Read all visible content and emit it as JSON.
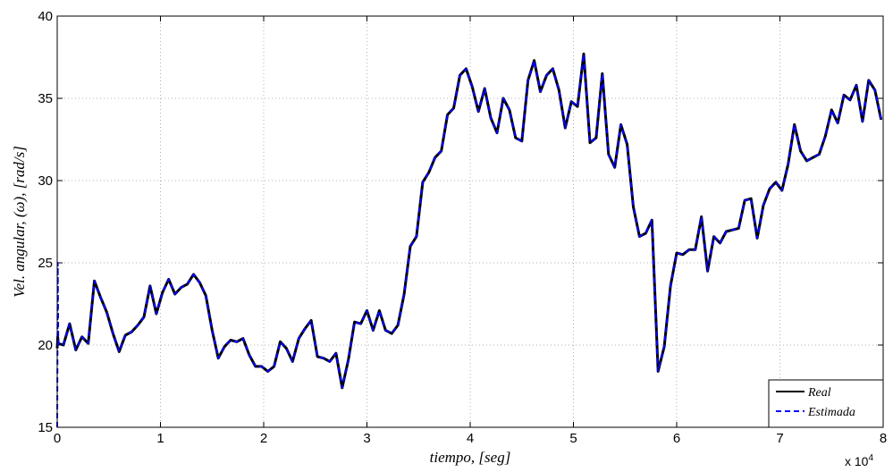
{
  "chart_data": {
    "type": "line",
    "xlabel": "tiempo, [seg]",
    "ylabel": "Vel. angular, (ω), [rad/s]",
    "x_multiplier_label": "x 10",
    "x_multiplier_exp": "4",
    "xlim": [
      0,
      8
    ],
    "ylim": [
      15,
      40
    ],
    "xticks": [
      "0",
      "1",
      "2",
      "3",
      "4",
      "5",
      "6",
      "7",
      "8"
    ],
    "yticks": [
      "15",
      "20",
      "25",
      "30",
      "35",
      "40"
    ],
    "grid": true,
    "legend_position": "bottom-right",
    "x": [
      0,
      0.005,
      0.01,
      0.06,
      0.12,
      0.18,
      0.24,
      0.3,
      0.36,
      0.42,
      0.48,
      0.54,
      0.6,
      0.66,
      0.72,
      0.78,
      0.84,
      0.9,
      0.96,
      1.02,
      1.08,
      1.14,
      1.2,
      1.26,
      1.32,
      1.38,
      1.44,
      1.5,
      1.56,
      1.62,
      1.68,
      1.74,
      1.8,
      1.86,
      1.92,
      1.98,
      2.04,
      2.1,
      2.16,
      2.22,
      2.28,
      2.34,
      2.4,
      2.46,
      2.52,
      2.58,
      2.64,
      2.7,
      2.76,
      2.82,
      2.88,
      2.94,
      3.0,
      3.06,
      3.12,
      3.18,
      3.24,
      3.3,
      3.36,
      3.42,
      3.48,
      3.54,
      3.6,
      3.66,
      3.72,
      3.78,
      3.84,
      3.9,
      3.96,
      4.02,
      4.08,
      4.14,
      4.2,
      4.26,
      4.32,
      4.38,
      4.44,
      4.5,
      4.56,
      4.62,
      4.68,
      4.74,
      4.8,
      4.86,
      4.92,
      4.98,
      5.04,
      5.1,
      5.16,
      5.22,
      5.28,
      5.34,
      5.4,
      5.46,
      5.52,
      5.58,
      5.64,
      5.7,
      5.76,
      5.82,
      5.88,
      5.94,
      6.0,
      6.06,
      6.12,
      6.18,
      6.24,
      6.3,
      6.36,
      6.42,
      6.48,
      6.54,
      6.6,
      6.66,
      6.72,
      6.78,
      6.84,
      6.9,
      6.96,
      7.02,
      7.08,
      7.14,
      7.2,
      7.26,
      7.32,
      7.38,
      7.44,
      7.5,
      7.56,
      7.62,
      7.68,
      7.74,
      7.8,
      7.86,
      7.92,
      7.98
    ],
    "series": [
      {
        "name": "Real",
        "color": "#000000",
        "style": "solid",
        "values": [
          19.8,
          20.5,
          20.1,
          20.0,
          21.3,
          19.7,
          20.5,
          20.1,
          23.9,
          22.9,
          22.0,
          20.7,
          19.6,
          20.6,
          20.8,
          21.2,
          21.7,
          23.6,
          21.9,
          23.2,
          24.0,
          23.1,
          23.5,
          23.7,
          24.3,
          23.8,
          23.0,
          20.9,
          19.2,
          19.9,
          20.3,
          20.2,
          20.4,
          19.4,
          18.7,
          18.7,
          18.4,
          18.7,
          20.2,
          19.8,
          19.0,
          20.4,
          21.0,
          21.5,
          19.3,
          19.2,
          19.0,
          19.5,
          17.4,
          19.1,
          21.4,
          21.3,
          22.1,
          20.9,
          22.1,
          20.9,
          20.7,
          21.2,
          23.1,
          26.0,
          26.6,
          29.9,
          30.5,
          31.4,
          31.8,
          34.0,
          34.4,
          36.4,
          36.8,
          35.7,
          34.2,
          35.6,
          33.8,
          32.9,
          35.0,
          34.3,
          32.6,
          32.4,
          36.1,
          37.3,
          35.4,
          36.4,
          36.8,
          35.5,
          33.2,
          34.8,
          34.5,
          37.7,
          32.3,
          32.6,
          36.5,
          31.6,
          30.8,
          33.4,
          32.2,
          28.4,
          26.6,
          26.8,
          27.6,
          18.4,
          19.9,
          23.6,
          25.6,
          25.5,
          25.8,
          25.8,
          27.8,
          24.5,
          26.6,
          26.2,
          26.9,
          27.0,
          27.1,
          28.8,
          28.9,
          26.5,
          28.5,
          29.5,
          29.9,
          29.4,
          31.0,
          33.4,
          31.8,
          31.2,
          31.4,
          31.6,
          32.7,
          34.3,
          33.5,
          35.2,
          34.9,
          35.8,
          33.6,
          36.1,
          35.5,
          33.7
        ]
      },
      {
        "name": "Estimada",
        "color": "#0000ff",
        "style": "dashed",
        "values": [
          15.0,
          25.0,
          20.1,
          20.0,
          21.3,
          19.7,
          20.5,
          20.1,
          23.9,
          22.9,
          22.0,
          20.7,
          19.6,
          20.6,
          20.8,
          21.2,
          21.7,
          23.6,
          21.9,
          23.2,
          24.0,
          23.1,
          23.5,
          23.7,
          24.3,
          23.8,
          23.0,
          20.9,
          19.2,
          19.9,
          20.3,
          20.2,
          20.4,
          19.4,
          18.7,
          18.7,
          18.4,
          18.7,
          20.2,
          19.8,
          19.0,
          20.4,
          21.0,
          21.5,
          19.3,
          19.2,
          19.0,
          19.5,
          17.4,
          19.1,
          21.4,
          21.3,
          22.1,
          20.9,
          22.1,
          20.9,
          20.7,
          21.2,
          23.1,
          26.0,
          26.6,
          29.9,
          30.5,
          31.4,
          31.8,
          34.0,
          34.4,
          36.4,
          36.8,
          35.7,
          34.2,
          35.6,
          33.8,
          32.9,
          35.0,
          34.3,
          32.6,
          32.4,
          36.1,
          37.3,
          35.4,
          36.4,
          36.8,
          35.5,
          33.2,
          34.8,
          34.5,
          37.7,
          32.3,
          32.6,
          36.5,
          31.6,
          30.8,
          33.4,
          32.2,
          28.4,
          26.6,
          26.8,
          27.6,
          18.4,
          19.9,
          23.6,
          25.6,
          25.5,
          25.8,
          25.8,
          27.8,
          24.5,
          26.6,
          26.2,
          26.9,
          27.0,
          27.1,
          28.8,
          28.9,
          26.5,
          28.5,
          29.5,
          29.9,
          29.4,
          31.0,
          33.4,
          31.8,
          31.2,
          31.4,
          31.6,
          32.7,
          34.3,
          33.5,
          35.2,
          34.9,
          35.8,
          33.6,
          36.1,
          35.5,
          33.7
        ]
      }
    ]
  }
}
